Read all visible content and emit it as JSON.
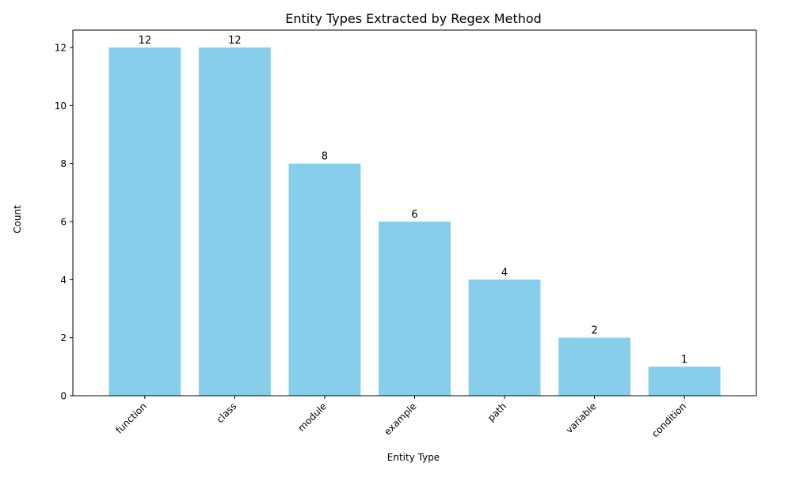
{
  "chart_data": {
    "type": "bar",
    "title": "Entity Types Extracted by Regex Method",
    "xlabel": "Entity Type",
    "ylabel": "Count",
    "categories": [
      "function",
      "class",
      "module",
      "example",
      "path",
      "variable",
      "condition"
    ],
    "values": [
      12,
      12,
      8,
      6,
      4,
      2,
      1
    ],
    "ylim": [
      0,
      12.6
    ],
    "yticks": [
      0,
      2,
      4,
      6,
      8,
      10,
      12
    ],
    "bar_color": "#87ceeb",
    "grid": false,
    "legend": "none",
    "data_labels": true
  }
}
